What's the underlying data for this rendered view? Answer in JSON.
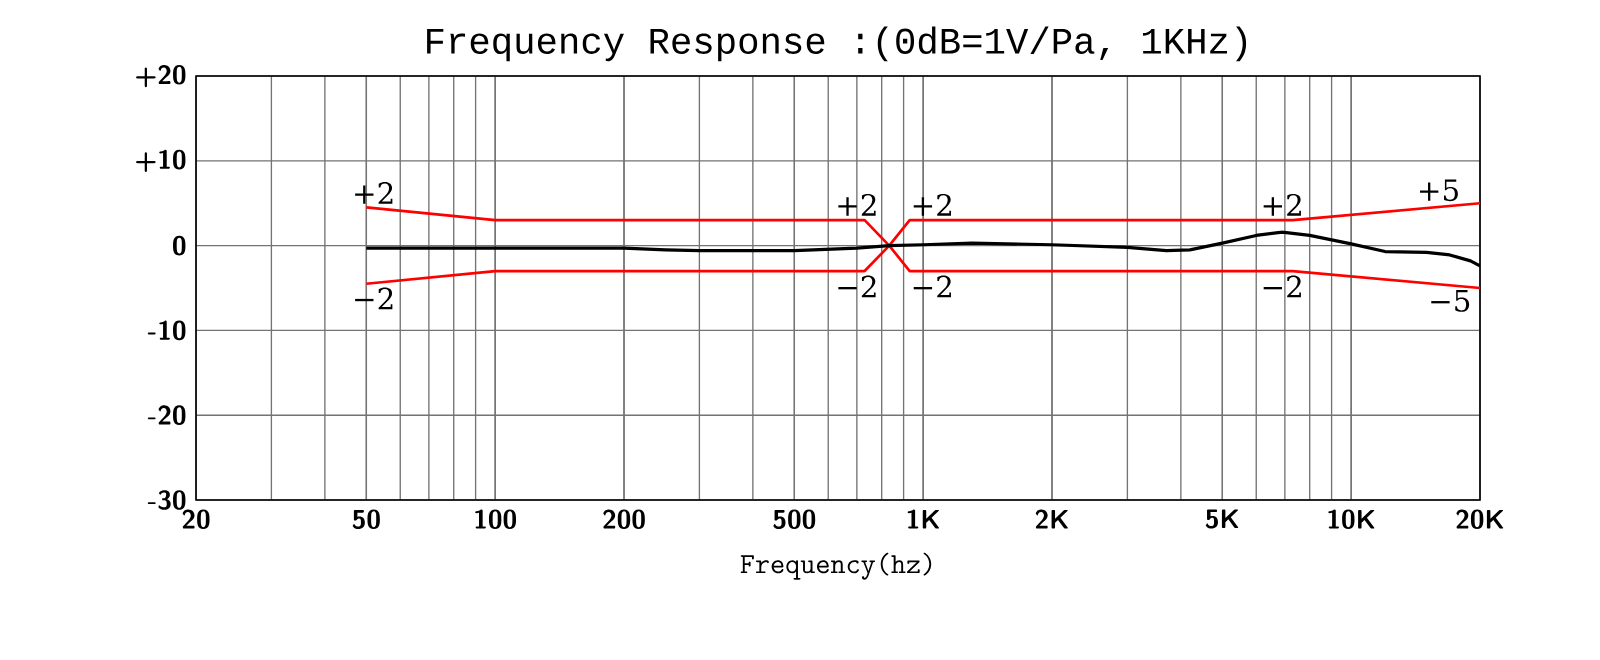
{
  "chart_data": {
    "type": "line",
    "title": "Frequency Response :(0dB=1V/Pa, 1KHz)",
    "xlabel": "Frequency(hz)",
    "log": "x",
    "grid": true,
    "line_style": "solid",
    "marker": "none",
    "xlim": [
      20,
      20000
    ],
    "ylim": [
      -30,
      20
    ],
    "xticks": [
      20,
      50,
      100,
      200,
      500,
      {
        "value": 1000,
        "label": "1K"
      },
      {
        "value": 2000,
        "label": "2K"
      },
      {
        "value": 5000,
        "label": "5K"
      },
      {
        "value": 10000,
        "label": "10K"
      },
      {
        "value": 20000,
        "label": "20K"
      }
    ],
    "yticks": [
      {
        "value": 20,
        "label": "+20"
      },
      {
        "value": 10,
        "label": "+10"
      },
      0,
      -10,
      -20,
      -30
    ],
    "series": [
      {
        "color": "#ff0000",
        "x": [
          50,
          100,
          730,
          833,
          930,
          7300,
          20000
        ],
        "values": [
          4.5,
          3,
          3,
          0,
          3,
          3,
          5
        ]
      },
      {
        "color": "#ff0000",
        "x": [
          50,
          100,
          730,
          833,
          930,
          7300,
          20000
        ],
        "values": [
          -4.5,
          -3,
          -3,
          0,
          -3,
          -3,
          -5
        ]
      },
      {
        "color": "#000000",
        "x": [
          50,
          100,
          200,
          250,
          300,
          500,
          700,
          833,
          1000,
          1300,
          2000,
          3000,
          3700,
          4200,
          5000,
          6000,
          6900,
          8000,
          10000,
          12000,
          15000,
          17000,
          19000,
          20000
        ],
        "values": [
          -0.3,
          -0.3,
          -0.3,
          -0.5,
          -0.6,
          -0.6,
          -0.3,
          0,
          0.1,
          0.3,
          0.1,
          -0.2,
          -0.6,
          -0.5,
          0.3,
          1.2,
          1.6,
          1.2,
          0.2,
          -0.7,
          -0.8,
          -1.1,
          -1.8,
          -2.4
        ]
      }
    ],
    "annotations": [
      {
        "text": "+2",
        "x": 52,
        "y": 4.4
      },
      {
        "text": "−2",
        "x": 52,
        "y": -4.4
      },
      {
        "text": "+2",
        "x": 700,
        "y": 3
      },
      {
        "text": "−2",
        "x": 700,
        "y": -3
      },
      {
        "text": "+2",
        "x": 1050,
        "y": 3
      },
      {
        "text": "−2",
        "x": 1050,
        "y": -3
      },
      {
        "text": "+2",
        "x": 6900,
        "y": 3
      },
      {
        "text": "−2",
        "x": 6900,
        "y": -3
      },
      {
        "text": "+5",
        "x": 16000,
        "y": 4.7
      },
      {
        "text": "−5",
        "x": 17000,
        "y": -4.7
      }
    ]
  }
}
